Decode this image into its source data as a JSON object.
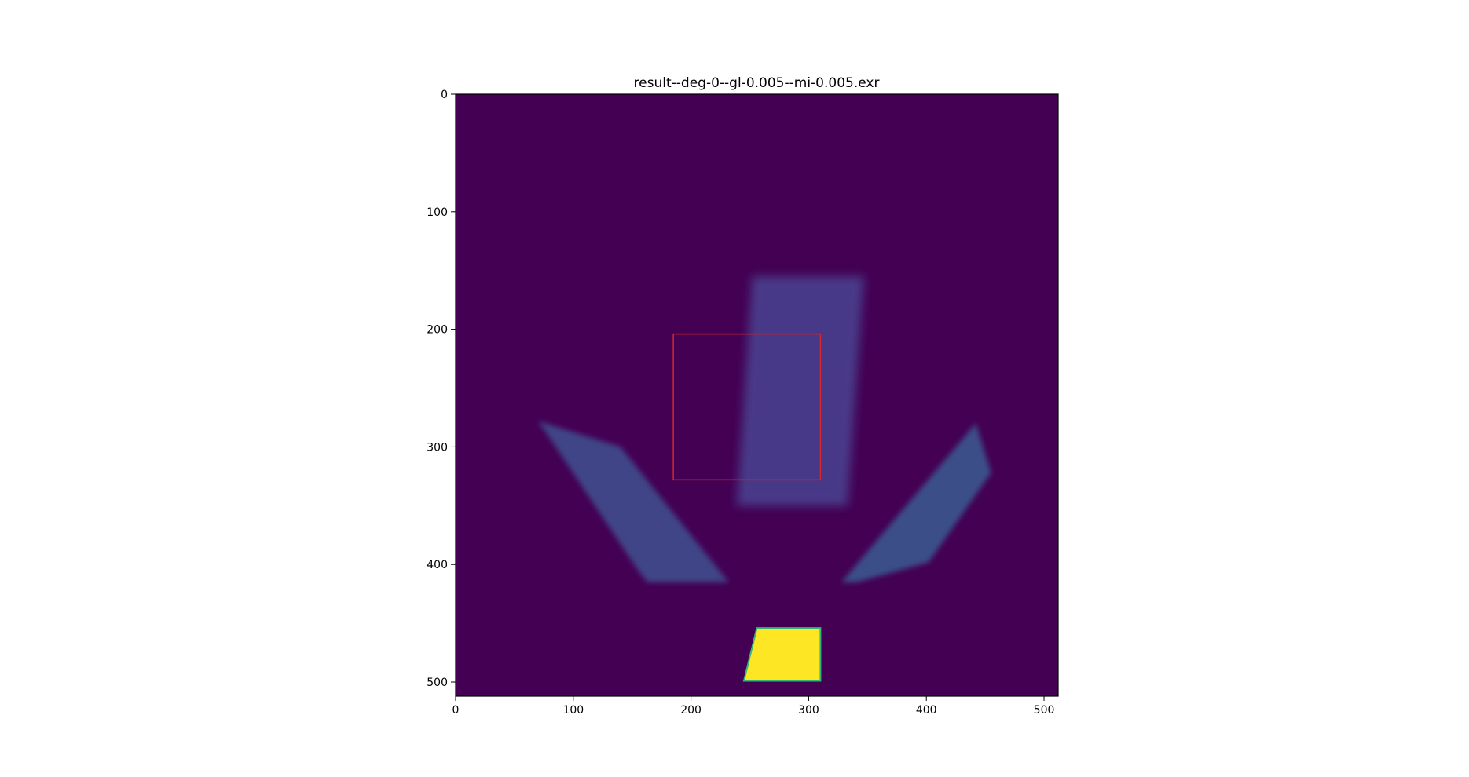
{
  "chart_data": {
    "type": "heatmap",
    "title": "result--deg-0--gl-0.005--mi-0.005.exr",
    "xlabel": "",
    "ylabel": "",
    "xlim": [
      0,
      512
    ],
    "ylim": [
      512,
      0
    ],
    "x_ticks": [
      0,
      100,
      200,
      300,
      400,
      500
    ],
    "y_ticks": [
      0,
      100,
      200,
      300,
      400,
      500
    ],
    "colormap": "viridis",
    "background_color": "#440154",
    "regions": [
      {
        "name": "upper-blurred-quad",
        "value_level": 0.14,
        "color": "#483d8b",
        "polygon": [
          [
            252,
            155
          ],
          [
            347,
            155
          ],
          [
            333,
            350
          ],
          [
            239,
            350
          ]
        ]
      },
      {
        "name": "left-blurred-band",
        "value_level": 0.14,
        "color": "#3f4a8a",
        "polygon": [
          [
            70,
            278
          ],
          [
            140,
            300
          ],
          [
            232,
            415
          ],
          [
            163,
            415
          ],
          [
            155,
            405
          ],
          [
            75,
            285
          ]
        ]
      },
      {
        "name": "right-blurred-band",
        "value_level": 0.16,
        "color": "#3b528b",
        "polygon": [
          [
            442,
            280
          ],
          [
            455,
            322
          ],
          [
            402,
            398
          ],
          [
            341,
            415
          ],
          [
            328,
            415
          ]
        ]
      },
      {
        "name": "bright-trapezoid",
        "value_level": 1.0,
        "color": "#fde725",
        "polygon": [
          [
            256,
            454
          ],
          [
            310,
            454
          ],
          [
            310,
            499
          ],
          [
            245,
            499
          ]
        ]
      }
    ],
    "highlight_box": {
      "x": [
        185,
        310
      ],
      "y": [
        204,
        328
      ],
      "color": "#d62728"
    }
  }
}
